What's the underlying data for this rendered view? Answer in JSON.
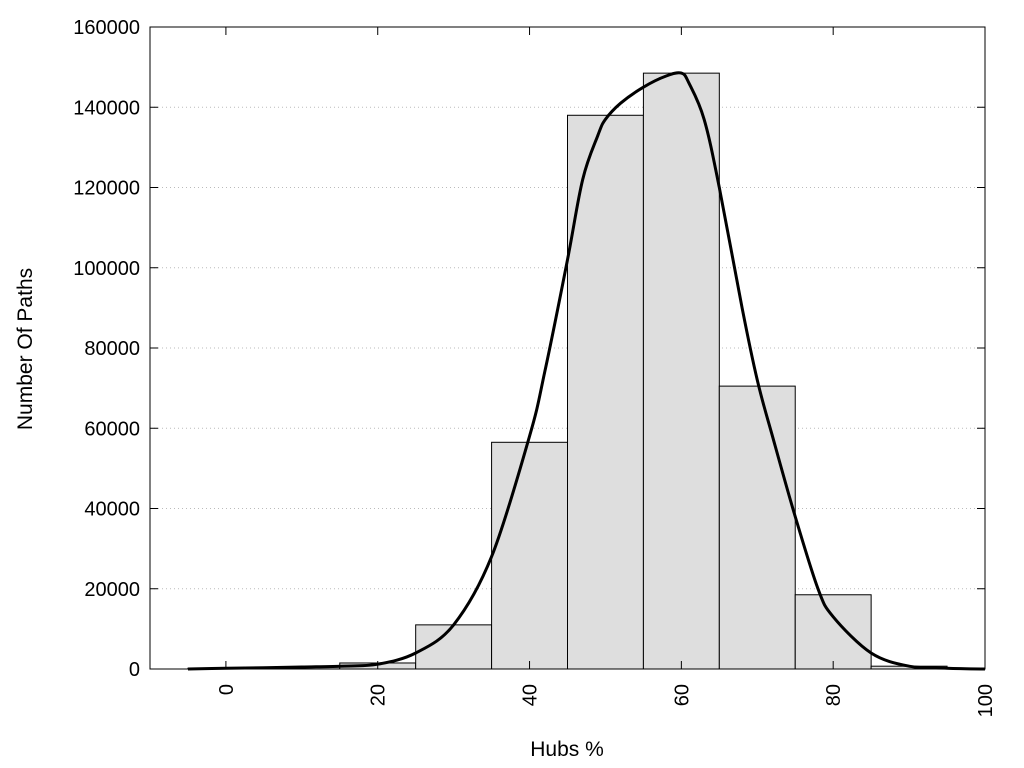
{
  "chart_data": {
    "type": "bar",
    "xlabel": "Hubs %",
    "ylabel": "Number Of Paths",
    "xlim": [
      -10,
      100
    ],
    "ylim": [
      0,
      160000
    ],
    "xticks": [
      "0",
      "20",
      "40",
      "60",
      "80",
      "100"
    ],
    "yticks": [
      "0",
      "20000",
      "40000",
      "60000",
      "80000",
      "100000",
      "120000",
      "140000",
      "160000"
    ],
    "grid": "horizontal dotted",
    "legend": "none",
    "bin_width": 10,
    "bins": [
      {
        "center": 0,
        "value": 200
      },
      {
        "center": 10,
        "value": 500
      },
      {
        "center": 20,
        "value": 1500
      },
      {
        "center": 30,
        "value": 11000
      },
      {
        "center": 40,
        "value": 56500
      },
      {
        "center": 50,
        "value": 138000
      },
      {
        "center": 60,
        "value": 148500
      },
      {
        "center": 70,
        "value": 70500
      },
      {
        "center": 80,
        "value": 18500
      },
      {
        "center": 90,
        "value": 700
      }
    ],
    "curve": {
      "x": [
        -5,
        0,
        5,
        10,
        15,
        20,
        25,
        30,
        35,
        40,
        42,
        45,
        47,
        49,
        50,
        52,
        55,
        58,
        60,
        61,
        63,
        65,
        68,
        70,
        72,
        75,
        78,
        80,
        85,
        90,
        95,
        100
      ],
      "y": [
        0,
        200,
        300,
        500,
        700,
        1200,
        4000,
        11000,
        28000,
        58000,
        74000,
        102000,
        122000,
        133000,
        137000,
        141000,
        145000,
        147800,
        148500,
        146000,
        137000,
        120000,
        90000,
        72000,
        58000,
        38000,
        20000,
        13000,
        4000,
        700,
        200,
        0
      ],
      "color": "#000000"
    },
    "bar_fill": "#dedede",
    "bar_stroke": "#000000"
  }
}
